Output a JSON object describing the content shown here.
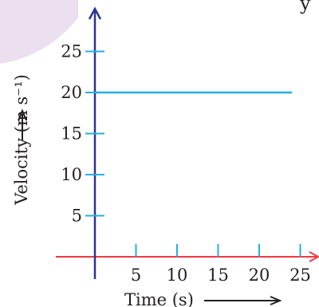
{
  "header_fragment": "y",
  "chart_data": {
    "type": "line",
    "title": "",
    "xlabel": "Time (s)",
    "ylabel": "Velocity (m s⁻¹)",
    "x_ticks": [
      5,
      10,
      15,
      20,
      25
    ],
    "y_ticks": [
      5,
      10,
      15,
      20,
      25
    ],
    "xlim": [
      0,
      27
    ],
    "ylim": [
      0,
      29
    ],
    "grid": false,
    "series": [
      {
        "x": [
          0,
          24
        ],
        "y": [
          20,
          20
        ]
      }
    ],
    "colors": {
      "velocity_line": "#27aee3",
      "x_axis": "#ee3a43",
      "y_axis": "#2e3192",
      "ticks": "#27aee3",
      "text": "#231f20",
      "corner_shape": "#ecdff0"
    },
    "annotations": {
      "ylabel_arrow": "up",
      "xlabel_arrow": "right"
    }
  }
}
